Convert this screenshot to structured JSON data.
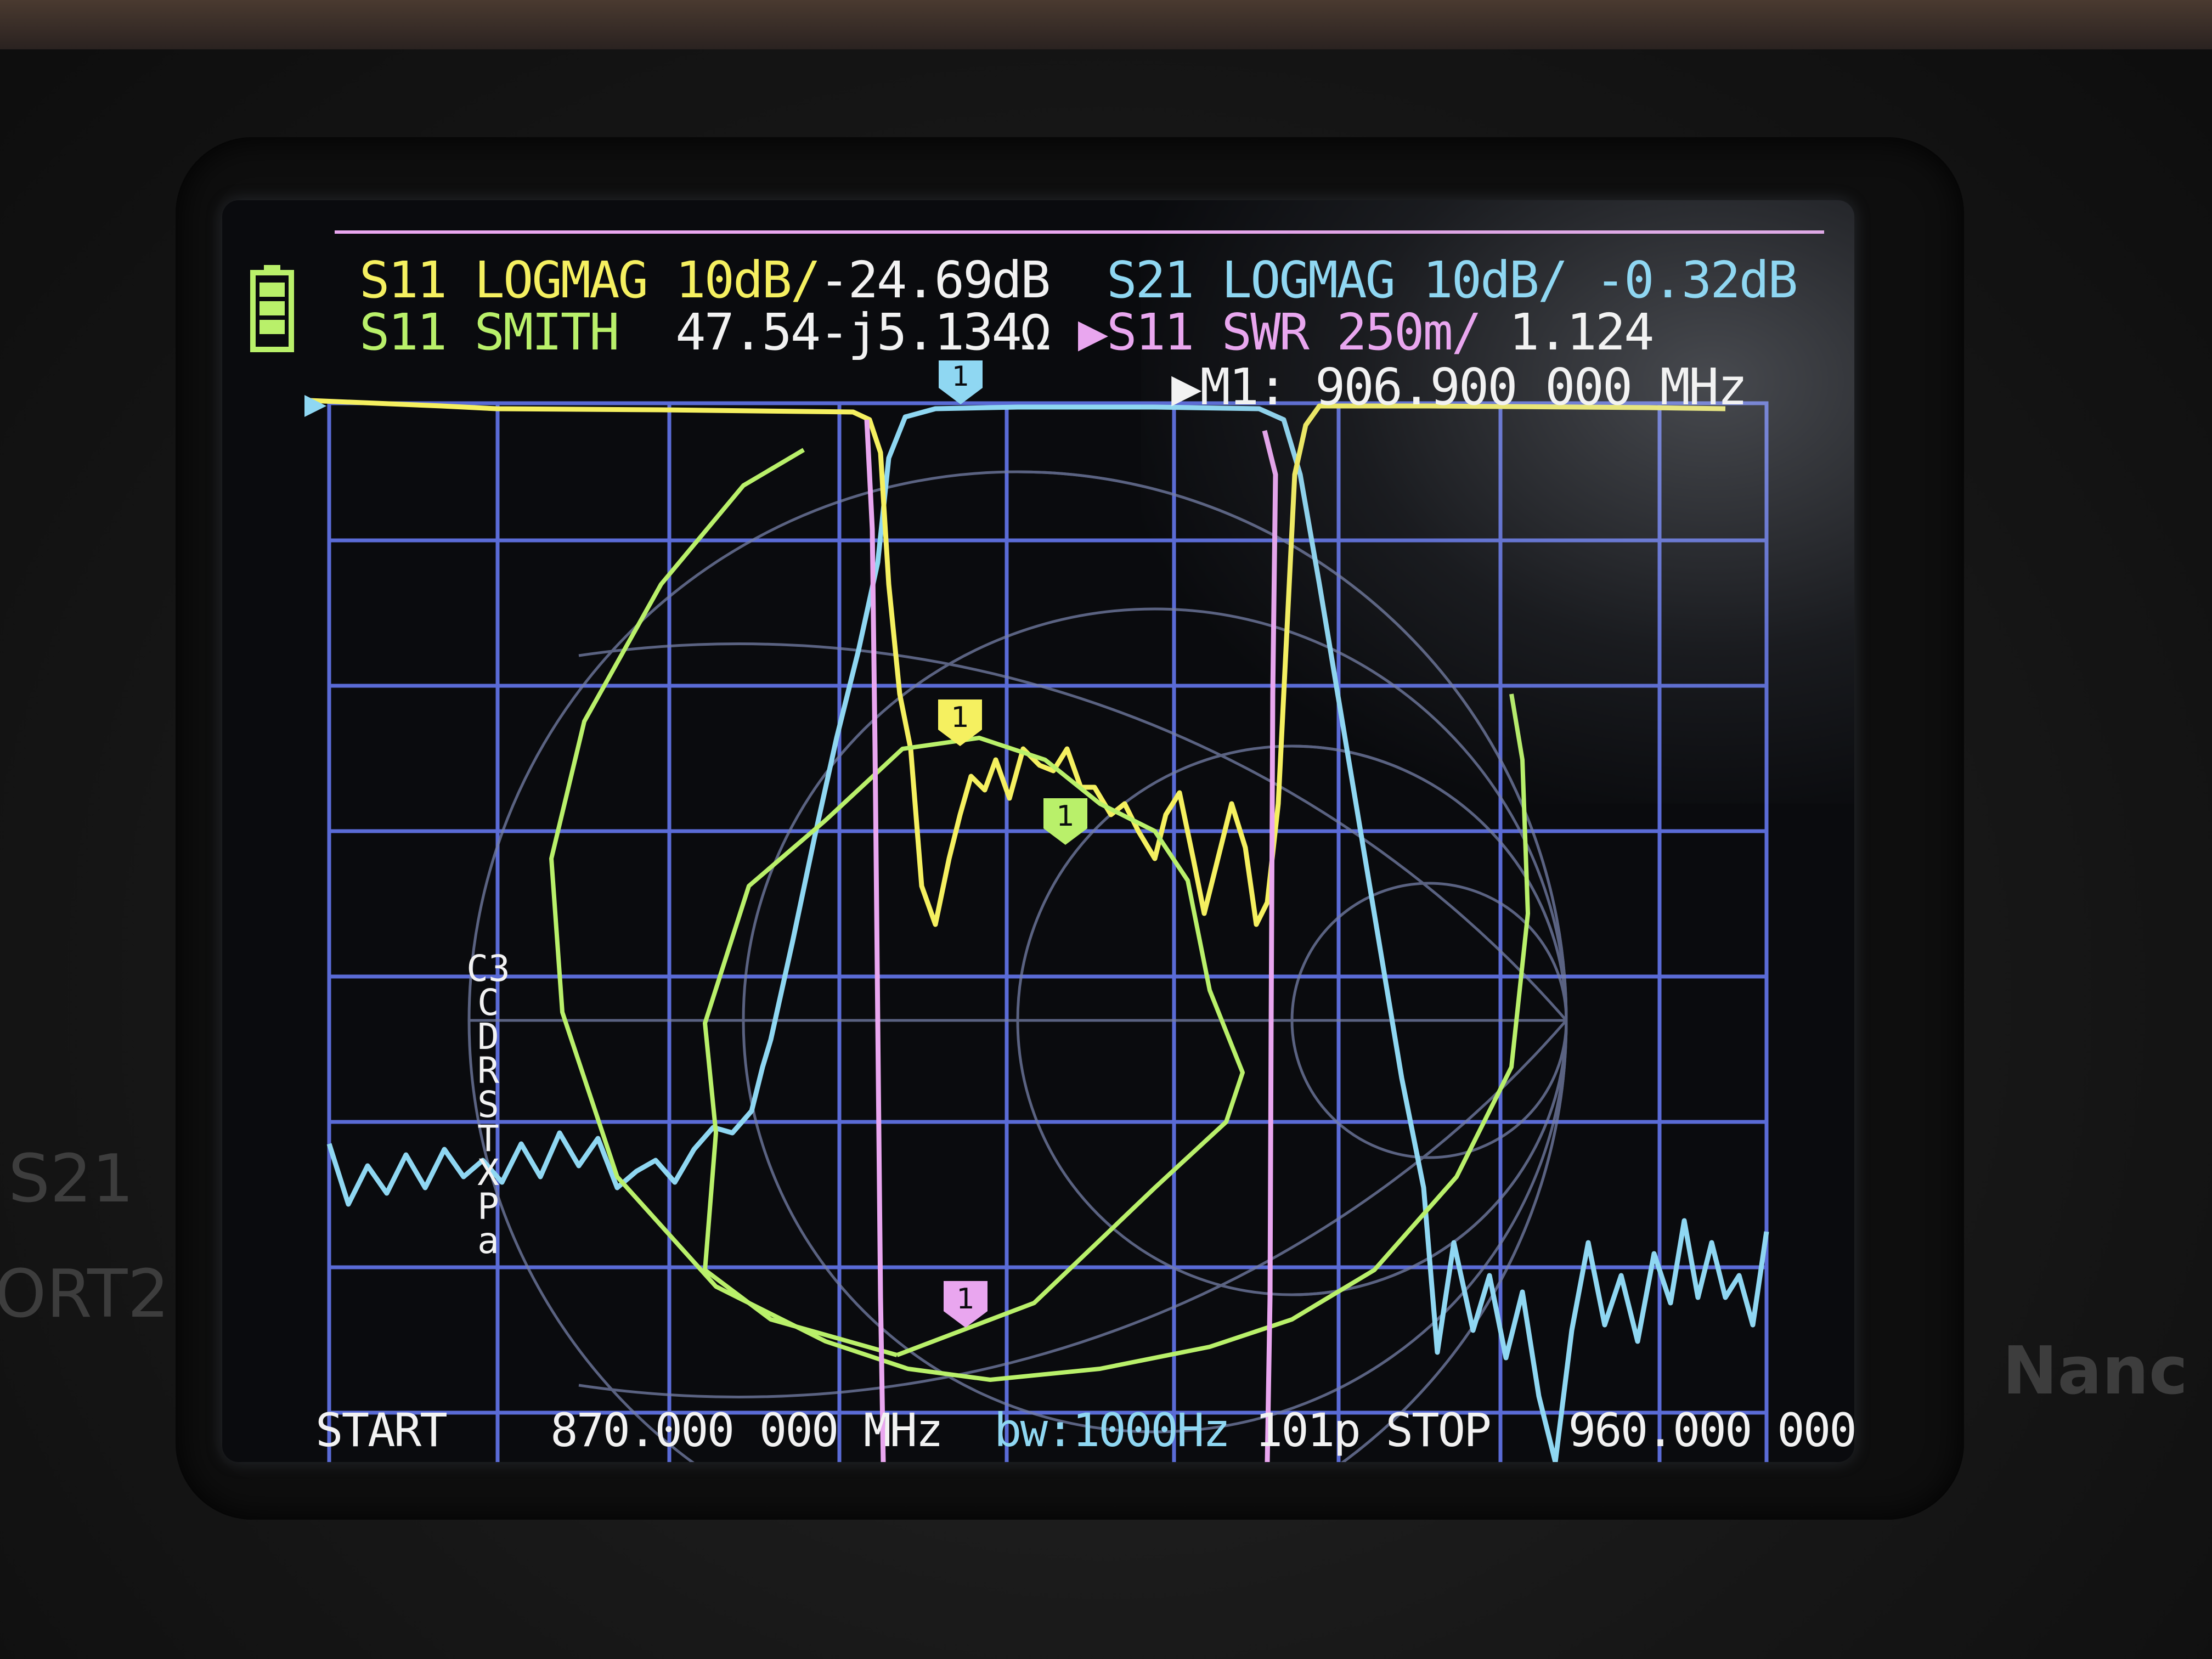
{
  "header": {
    "ch1_name": "S11 LOGMAG",
    "ch1_scale": "10dB/",
    "ch1_value": "-24.69dB",
    "ch2_name": "S21 LOGMAG",
    "ch2_scale": "10dB/",
    "ch2_value": "-0.32dB",
    "ch3_name": "S11 SMITH",
    "ch3_value": "47.54-j5.134Ω",
    "ch4_name": "▶S11 SWR",
    "ch4_scale": "250m/",
    "ch4_value": "1.124",
    "marker_label": "▶M1:",
    "marker_freq": "906.900 000 MHz"
  },
  "markers": {
    "m1": "1"
  },
  "sidebar": {
    "letters": [
      "C3",
      "C",
      "D",
      "R",
      "S",
      "T",
      "X",
      "P",
      "a"
    ]
  },
  "footer": {
    "start_label": "START",
    "start_freq": "870.000 000 MHz",
    "bandwidth": "bw:1000Hz",
    "points": "101p",
    "stop_label": "STOP",
    "stop_freq": "960.000 000 MHz"
  },
  "device_labels": {
    "port": "S21",
    "port2": "ORT2",
    "brand": "Nanc"
  },
  "colors": {
    "s11_logmag": "#f5f060",
    "s21_logmag": "#8fd7f2",
    "s11_smith": "#b9f06a",
    "s11_swr": "#e9a6ef",
    "grid": "#5a6bd6",
    "smith_grid": "#7580a8"
  },
  "icons": {
    "battery": "battery-icon",
    "marker": "marker-flag-icon"
  }
}
